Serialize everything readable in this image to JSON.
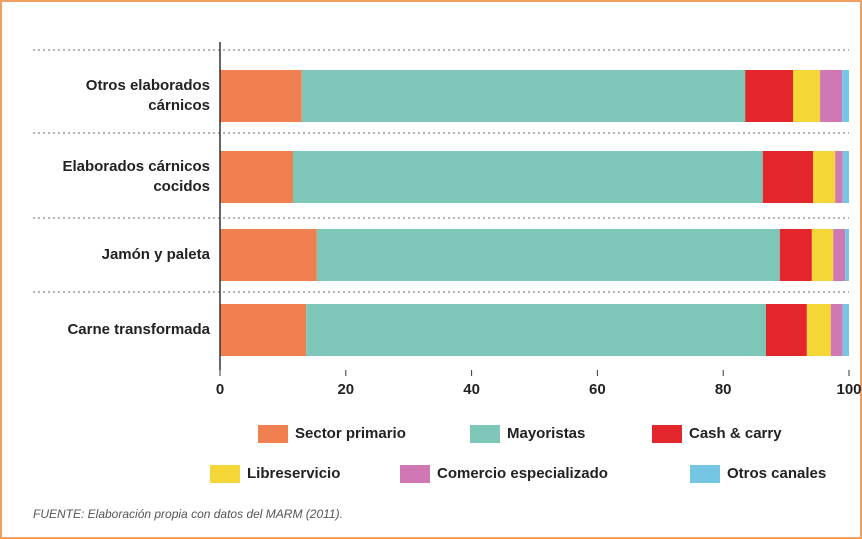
{
  "chart_data": {
    "type": "stacked_barh",
    "categories": [
      "Otros elaborados cárnicos",
      "Elaborados cárnicos cocidos",
      "Jamón y paleta",
      "Carne transformada"
    ],
    "series": [
      {
        "name": "Sector primario",
        "color": "#f08050",
        "values": [
          13,
          11.6,
          15.4,
          13.7
        ]
      },
      {
        "name": "Mayoristas",
        "color": "#7dc6b8",
        "values": [
          70.5,
          74.7,
          73.6,
          73.1
        ]
      },
      {
        "name": "Cash & carry",
        "color": "#e3262b",
        "values": [
          7.6,
          8,
          5.1,
          6.5
        ]
      },
      {
        "name": "Libreservicio",
        "color": "#f5d637",
        "values": [
          4.3,
          3.5,
          3.4,
          3.8
        ]
      },
      {
        "name": "Comercio especializado",
        "color": "#cf78b4",
        "values": [
          3.5,
          1.2,
          1.9,
          1.9
        ]
      },
      {
        "name": "Otros canales",
        "color": "#74c6e4",
        "values": [
          1.1,
          1,
          0.6,
          1
        ]
      }
    ],
    "xlim": [
      0,
      100
    ],
    "xticks": [
      0,
      20,
      40,
      60,
      80,
      100
    ],
    "source": "FUENTE: Elaboración propia con datos del MARM (2011)."
  }
}
